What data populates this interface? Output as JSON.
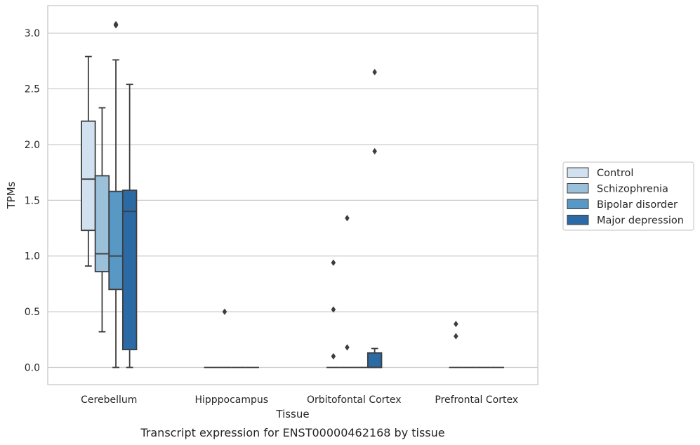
{
  "caption": "Transcript expression for ENST00000462168 by tissue",
  "chart_data": {
    "type": "boxplot",
    "xlabel": "Tissue",
    "ylabel": "TPMs",
    "ylim": [
      -0.15,
      3.25
    ],
    "yticks": [
      0.0,
      0.5,
      1.0,
      1.5,
      2.0,
      2.5,
      3.0
    ],
    "ytick_labels": [
      "0.0",
      "0.5",
      "1.0",
      "1.5",
      "2.0",
      "2.5",
      "3.0"
    ],
    "grid": "horizontal",
    "legend_position": "right",
    "categories": [
      "Cerebellum",
      "Hipppocampus",
      "Orbitofontal Cortex",
      "Prefrontal Cortex"
    ],
    "series": [
      {
        "name": "Control",
        "color": "#d1e1f0",
        "boxes": [
          {
            "whislo": 0.91,
            "q1": 1.23,
            "med": 1.69,
            "q3": 2.21,
            "whishi": 2.79,
            "fliers": []
          },
          {
            "whislo": 0.0,
            "q1": 0.0,
            "med": 0.0,
            "q3": 0.0,
            "whishi": 0.0,
            "fliers": []
          },
          {
            "whislo": 0.0,
            "q1": 0.0,
            "med": 0.0,
            "q3": 0.0,
            "whishi": 0.0,
            "fliers": [
              0.94,
              0.52,
              0.1
            ]
          },
          {
            "whislo": 0.0,
            "q1": 0.0,
            "med": 0.0,
            "q3": 0.0,
            "whishi": 0.0,
            "fliers": [
              0.39,
              0.28
            ]
          }
        ]
      },
      {
        "name": "Schizophrenia",
        "color": "#9ac0da",
        "boxes": [
          {
            "whislo": 0.32,
            "q1": 0.86,
            "med": 1.02,
            "q3": 1.72,
            "whishi": 2.33,
            "fliers": []
          },
          {
            "whislo": 0.0,
            "q1": 0.0,
            "med": 0.0,
            "q3": 0.0,
            "whishi": 0.0,
            "fliers": [
              0.5
            ]
          },
          {
            "whislo": 0.0,
            "q1": 0.0,
            "med": 0.0,
            "q3": 0.0,
            "whishi": 0.0,
            "fliers": [
              1.34,
              0.18
            ]
          },
          {
            "whislo": 0.0,
            "q1": 0.0,
            "med": 0.0,
            "q3": 0.0,
            "whishi": 0.0,
            "fliers": []
          }
        ]
      },
      {
        "name": "Bipolar disorder",
        "color": "#5798c5",
        "boxes": [
          {
            "whislo": 0.0,
            "q1": 0.7,
            "med": 1.0,
            "q3": 1.58,
            "whishi": 2.76,
            "fliers": [
              3.08,
              3.07
            ]
          },
          {
            "whislo": 0.0,
            "q1": 0.0,
            "med": 0.0,
            "q3": 0.0,
            "whishi": 0.0,
            "fliers": []
          },
          {
            "whislo": 0.0,
            "q1": 0.0,
            "med": 0.0,
            "q3": 0.0,
            "whishi": 0.0,
            "fliers": []
          },
          {
            "whislo": 0.0,
            "q1": 0.0,
            "med": 0.0,
            "q3": 0.0,
            "whishi": 0.0,
            "fliers": []
          }
        ]
      },
      {
        "name": "Major depression",
        "color": "#2b6aa5",
        "boxes": [
          {
            "whislo": 0.0,
            "q1": 0.16,
            "med": 1.4,
            "q3": 1.59,
            "whishi": 2.54,
            "fliers": []
          },
          {
            "whislo": 0.0,
            "q1": 0.0,
            "med": 0.0,
            "q3": 0.0,
            "whishi": 0.0,
            "fliers": []
          },
          {
            "whislo": 0.0,
            "q1": 0.0,
            "med": 0.0,
            "q3": 0.13,
            "whishi": 0.17,
            "fliers": [
              2.65,
              1.94
            ]
          },
          {
            "whislo": 0.0,
            "q1": 0.0,
            "med": 0.0,
            "q3": 0.0,
            "whishi": 0.0,
            "fliers": []
          }
        ]
      }
    ]
  }
}
